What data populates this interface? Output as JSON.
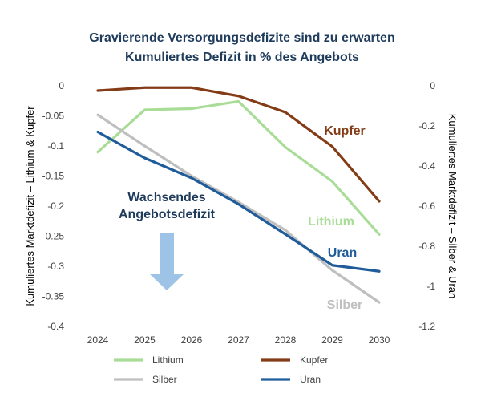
{
  "chart_data": {
    "type": "line",
    "title": [
      "Gravierende Versorgungsdefizite sind zu erwarten",
      "Kumuliertes Defizit in % des Angebots"
    ],
    "x": [
      "2024",
      "2025",
      "2026",
      "2027",
      "2028",
      "2029",
      "2030"
    ],
    "y_left": {
      "label": "Kumuliertes Marktdefizit – Lithium & Kupfer",
      "ylim": [
        -0.4,
        0
      ],
      "ticks": [
        0,
        -0.05,
        -0.1,
        -0.15,
        -0.2,
        -0.25,
        -0.3,
        -0.35,
        -0.4
      ],
      "tick_labels": [
        "0",
        "-0.05",
        "-0.1",
        "-0.15",
        "-0.2",
        "-0.25",
        "-0.3",
        "-0.35",
        "-0.4"
      ]
    },
    "y_right": {
      "label": "Kumuliertes Marktdefizit – Silber & Uran",
      "ylim": [
        -1.2,
        0
      ],
      "ticks": [
        0,
        -0.2,
        -0.4,
        -0.6,
        -0.8,
        -1,
        -1.2
      ],
      "tick_labels": [
        "0",
        "-0.2",
        "-0.4",
        "-0.6",
        "-0.8",
        "-1",
        "-1.2"
      ]
    },
    "series": [
      {
        "name": "Lithium",
        "axis": "left",
        "color": "#a9dc96",
        "values": [
          -0.11,
          -0.04,
          -0.038,
          -0.026,
          -0.102,
          -0.159,
          -0.247
        ]
      },
      {
        "name": "Kupfer",
        "axis": "left",
        "color": "#843c17",
        "values": [
          -0.008,
          -0.003,
          -0.003,
          -0.017,
          -0.044,
          -0.101,
          -0.192
        ]
      },
      {
        "name": "Silber",
        "axis": "right",
        "color": "#bfbfbf",
        "values": [
          -0.145,
          -0.3,
          -0.45,
          -0.58,
          -0.72,
          -0.92,
          -1.08
        ]
      },
      {
        "name": "Uran",
        "axis": "right",
        "color": "#1f5c99",
        "values": [
          -0.23,
          -0.36,
          -0.46,
          -0.59,
          -0.74,
          -0.895,
          -0.925
        ]
      }
    ],
    "series_labels": {
      "Kupfer": "Kupfer",
      "Lithium": "Lithium",
      "Uran": "Uran",
      "Silber": "Silber"
    },
    "annotation": {
      "lines": [
        "Wachsendes",
        "Angebotsdefizit"
      ],
      "arrow_color": "#9dc3e6"
    },
    "legend": {
      "position": "bottom",
      "entries": [
        "Lithium",
        "Kupfer",
        "Silber",
        "Uran"
      ]
    },
    "grid": false
  }
}
